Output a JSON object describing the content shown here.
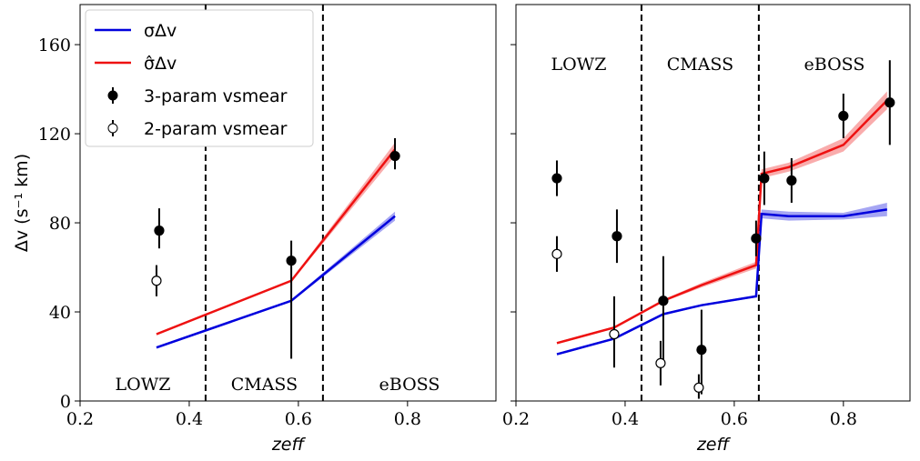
{
  "chart_data": [
    {
      "type": "line",
      "ylabel": "Δv (s⁻¹ km)",
      "xlabel": "zeff",
      "xlim": [
        0.2,
        0.962
      ],
      "ylim": [
        0,
        178
      ],
      "xticks": [
        0.2,
        0.4,
        0.6,
        0.8
      ],
      "yticks": [
        0,
        40,
        80,
        120,
        160
      ],
      "show_ytick_labels": true,
      "legend": "upper left",
      "vlines": [
        0.43,
        0.645
      ],
      "annotations": [
        "LOWZ",
        "CMASS",
        "eBOSS"
      ],
      "annotation_position": "bottom",
      "series": [
        {
          "name": "σΔv",
          "kind": "line",
          "color": "#0000dd",
          "x": [
            0.34,
            0.587,
            0.777
          ],
          "values": [
            24,
            45,
            83
          ],
          "band": [
            0.5,
            0.5,
            2
          ]
        },
        {
          "name": "σ̂Δv",
          "kind": "line",
          "color": "#ee1111",
          "x": [
            0.34,
            0.587,
            0.777
          ],
          "values": [
            30,
            54,
            113
          ],
          "band": [
            0.5,
            0.5,
            3
          ]
        },
        {
          "name": "3-param vsmear",
          "kind": "points",
          "fill": "#000",
          "x": [
            0.345,
            0.587,
            0.777
          ],
          "values": [
            76.5,
            63,
            110
          ],
          "err_low": [
            8,
            44,
            6
          ],
          "err_high": [
            10,
            9,
            8
          ]
        },
        {
          "name": "2-param vsmear",
          "kind": "points",
          "fill": "#fff",
          "x": [
            0.34
          ],
          "values": [
            54
          ],
          "err_low": [
            7
          ],
          "err_high": [
            7
          ]
        }
      ]
    },
    {
      "type": "line",
      "xlabel": "zeff",
      "xlim": [
        0.2,
        0.922
      ],
      "ylim": [
        0,
        178
      ],
      "xticks": [
        0.2,
        0.4,
        0.6,
        0.8
      ],
      "yticks": [
        0,
        40,
        80,
        120,
        160
      ],
      "show_ytick_labels": false,
      "vlines": [
        0.43,
        0.645
      ],
      "annotations": [
        "LOWZ",
        "CMASS",
        "eBOSS"
      ],
      "annotation_position": "top",
      "series": [
        {
          "kind": "line",
          "color": "#0000dd",
          "x": [
            0.275,
            0.38,
            0.47,
            0.54,
            0.64,
            0.65,
            0.7,
            0.8,
            0.88
          ],
          "values": [
            21,
            28,
            39,
            43,
            47,
            84,
            83,
            83,
            86
          ],
          "band": [
            0.5,
            0.5,
            0.5,
            0.5,
            0.5,
            2,
            2,
            1.5,
            3
          ]
        },
        {
          "kind": "line",
          "color": "#ee1111",
          "x": [
            0.275,
            0.38,
            0.47,
            0.54,
            0.64,
            0.65,
            0.7,
            0.8,
            0.88
          ],
          "values": [
            26,
            33,
            45,
            52,
            61,
            102,
            105,
            115,
            135
          ],
          "band": [
            0.5,
            0.5,
            0.5,
            1,
            1.5,
            2,
            2,
            3,
            4
          ]
        },
        {
          "kind": "points",
          "fill": "#000",
          "x": [
            0.275,
            0.385,
            0.47,
            0.54,
            0.64,
            0.655,
            0.705,
            0.8,
            0.885
          ],
          "values": [
            100,
            74,
            45,
            23,
            73,
            100,
            99,
            128,
            134
          ],
          "err_low": [
            8,
            12,
            29,
            20,
            8,
            12,
            10,
            10,
            19
          ],
          "err_high": [
            8,
            12,
            20,
            18,
            8,
            12,
            10,
            10,
            19
          ]
        },
        {
          "kind": "points",
          "fill": "#fff",
          "x": [
            0.275,
            0.38,
            0.465,
            0.535
          ],
          "values": [
            66,
            30,
            17,
            6
          ],
          "err_low": [
            8,
            15,
            10,
            5
          ],
          "err_high": [
            8,
            17,
            10,
            6
          ]
        }
      ]
    }
  ]
}
